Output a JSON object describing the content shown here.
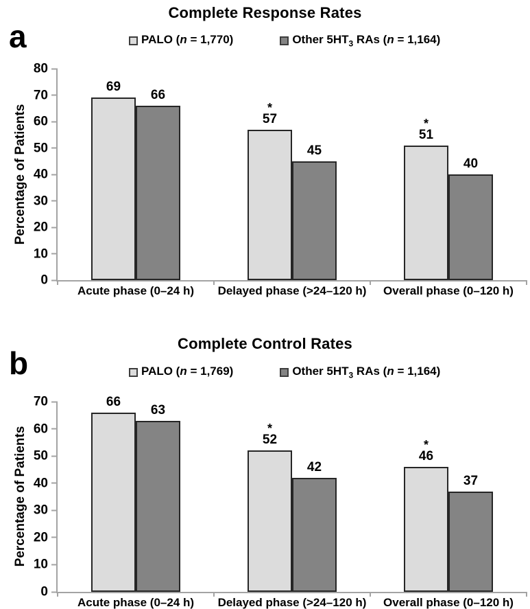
{
  "panels": [
    {
      "letter": "a",
      "title": "Complete Response Rates",
      "ylabel": "Percentage of Patients",
      "legend": [
        {
          "color": "#dcdcdc",
          "pre": "PALO (",
          "var": "n",
          "post": " = 1,770)"
        },
        {
          "color": "#848484",
          "pre": "Other 5HT",
          "sub": "3",
          "mid": " RAs (",
          "var": "n",
          "post": " = 1,164)"
        }
      ]
    },
    {
      "letter": "b",
      "title": "Complete Control Rates",
      "ylabel": "Percentage of Patients",
      "legend": [
        {
          "color": "#dcdcdc",
          "pre": "PALO (",
          "var": "n",
          "post": " = 1,769)"
        },
        {
          "color": "#848484",
          "pre": "Other 5HT",
          "sub": "3",
          "mid": " RAs (",
          "var": "n",
          "post": " = 1,164)"
        }
      ]
    }
  ],
  "chart_data": [
    {
      "type": "bar",
      "title": "Complete Response Rates",
      "categories": [
        "Acute phase (0–24 h)",
        "Delayed phase (>24–120 h)",
        "Overall phase (0–120 h)"
      ],
      "series": [
        {
          "name": "PALO (n = 1,770)",
          "color": "#dcdcdc",
          "values": [
            69,
            57,
            51
          ],
          "annotations": [
            "",
            "*",
            "*"
          ]
        },
        {
          "name": "Other 5HT₃ RAs (n = 1,164)",
          "color": "#848484",
          "values": [
            66,
            45,
            40
          ],
          "annotations": [
            "",
            "",
            ""
          ]
        }
      ],
      "xlabel": "",
      "ylabel": "Percentage of Patients",
      "ylim": [
        0,
        80
      ],
      "yticks": [
        0,
        10,
        20,
        30,
        40,
        50,
        60,
        70,
        80
      ],
      "grid": false,
      "legend_position": "top"
    },
    {
      "type": "bar",
      "title": "Complete Control Rates",
      "categories": [
        "Acute phase (0–24 h)",
        "Delayed phase (>24–120 h)",
        "Overall phase (0–120 h)"
      ],
      "series": [
        {
          "name": "PALO (n = 1,769)",
          "color": "#dcdcdc",
          "values": [
            66,
            52,
            46
          ],
          "annotations": [
            "",
            "*",
            "*"
          ]
        },
        {
          "name": "Other 5HT₃ RAs (n = 1,164)",
          "color": "#848484",
          "values": [
            63,
            42,
            37
          ],
          "annotations": [
            "",
            "",
            ""
          ]
        }
      ],
      "xlabel": "",
      "ylabel": "Percentage of Patients",
      "ylim": [
        0,
        70
      ],
      "yticks": [
        0,
        10,
        20,
        30,
        40,
        50,
        60,
        70
      ],
      "grid": false,
      "legend_position": "top"
    }
  ]
}
